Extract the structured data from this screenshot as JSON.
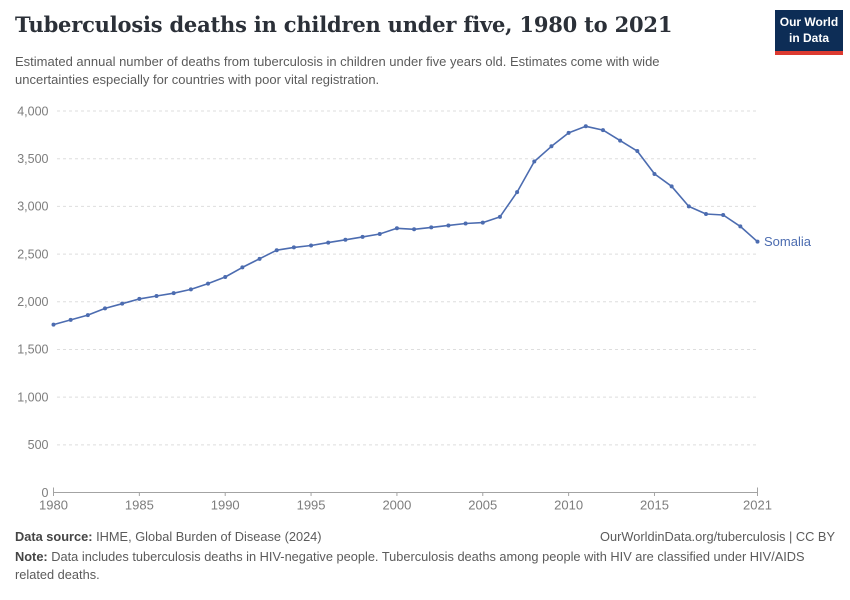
{
  "header": {
    "title": "Tuberculosis deaths in children under five, 1980 to 2021",
    "subtitle": "Estimated annual number of deaths from tuberculosis in children under five years old. Estimates come with wide uncertainties especially for countries with poor vital registration.",
    "logo": {
      "line1": "Our World",
      "line2": "in Data",
      "bg_color": "#0d2d56",
      "accent_color": "#dc3a30"
    }
  },
  "chart_data": {
    "type": "line",
    "title": "Tuberculosis deaths in children under five, 1980 to 2021",
    "xlabel": "",
    "ylabel": "",
    "ylim": [
      0,
      4000
    ],
    "yticks": [
      0,
      500,
      1000,
      1500,
      2000,
      2500,
      3000,
      3500,
      4000
    ],
    "xticks": [
      1980,
      1985,
      1990,
      1995,
      2000,
      2005,
      2010,
      2015,
      2021
    ],
    "grid": "horizontal-dashed",
    "legend_position": "end-of-line-label",
    "x": [
      1980,
      1981,
      1982,
      1983,
      1984,
      1985,
      1986,
      1987,
      1988,
      1989,
      1990,
      1991,
      1992,
      1993,
      1994,
      1995,
      1996,
      1997,
      1998,
      1999,
      2000,
      2001,
      2002,
      2003,
      2004,
      2005,
      2006,
      2007,
      2008,
      2009,
      2010,
      2011,
      2012,
      2013,
      2014,
      2015,
      2016,
      2017,
      2018,
      2019,
      2020,
      2021
    ],
    "series": [
      {
        "name": "Somalia",
        "color": "#4c6cb0",
        "values": [
          1760,
          1810,
          1860,
          1930,
          1980,
          2030,
          2060,
          2090,
          2130,
          2190,
          2260,
          2360,
          2450,
          2540,
          2570,
          2590,
          2620,
          2650,
          2680,
          2710,
          2770,
          2760,
          2780,
          2800,
          2820,
          2830,
          2890,
          3150,
          3470,
          3630,
          3770,
          3840,
          3800,
          3690,
          3580,
          3340,
          3210,
          3000,
          2920,
          2910,
          2790,
          2630
        ]
      }
    ],
    "colors": {
      "gridline": "#dedede",
      "axis": "#a3a3a3",
      "tick_text": "#7d7d7d"
    }
  },
  "footer": {
    "datasource_label": "Data source:",
    "datasource_value": " IHME, Global Burden of Disease (2024)",
    "link": "OurWorldinData.org/tuberculosis | CC BY",
    "note_label": "Note:",
    "note_value": " Data includes tuberculosis deaths in HIV-negative people. Tuberculosis deaths among people with HIV are classified under HIV/AIDS related deaths."
  }
}
